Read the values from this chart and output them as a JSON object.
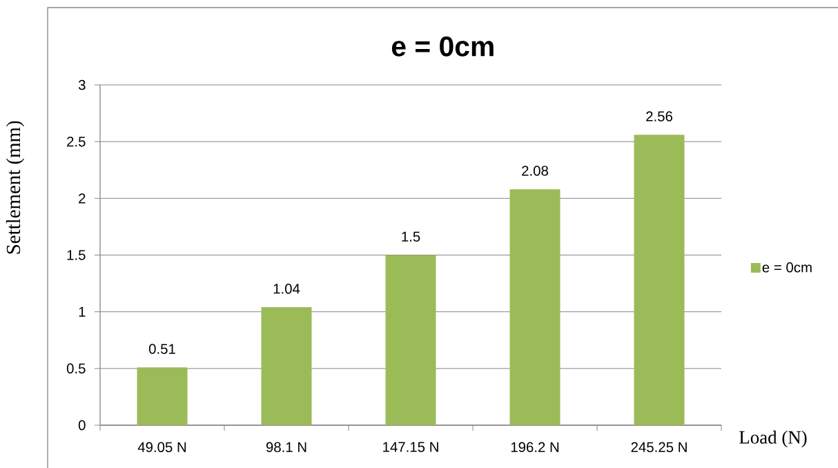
{
  "chart_data": {
    "type": "bar",
    "title": "e = 0cm",
    "xlabel": "Load (N)",
    "ylabel": "Settlement (mm)",
    "categories": [
      "49.05 N",
      "98.1 N",
      "147.15 N",
      "196.2 N",
      "245.25 N"
    ],
    "series": [
      {
        "name": "e = 0cm",
        "color": "#9bbb59",
        "values": [
          0.51,
          1.04,
          1.5,
          2.08,
          2.56
        ]
      }
    ],
    "ylim": [
      0,
      3
    ],
    "yticks": [
      0,
      0.5,
      1,
      1.5,
      2,
      2.5,
      3
    ],
    "grid": "y",
    "legend": "right",
    "data_labels": true
  }
}
